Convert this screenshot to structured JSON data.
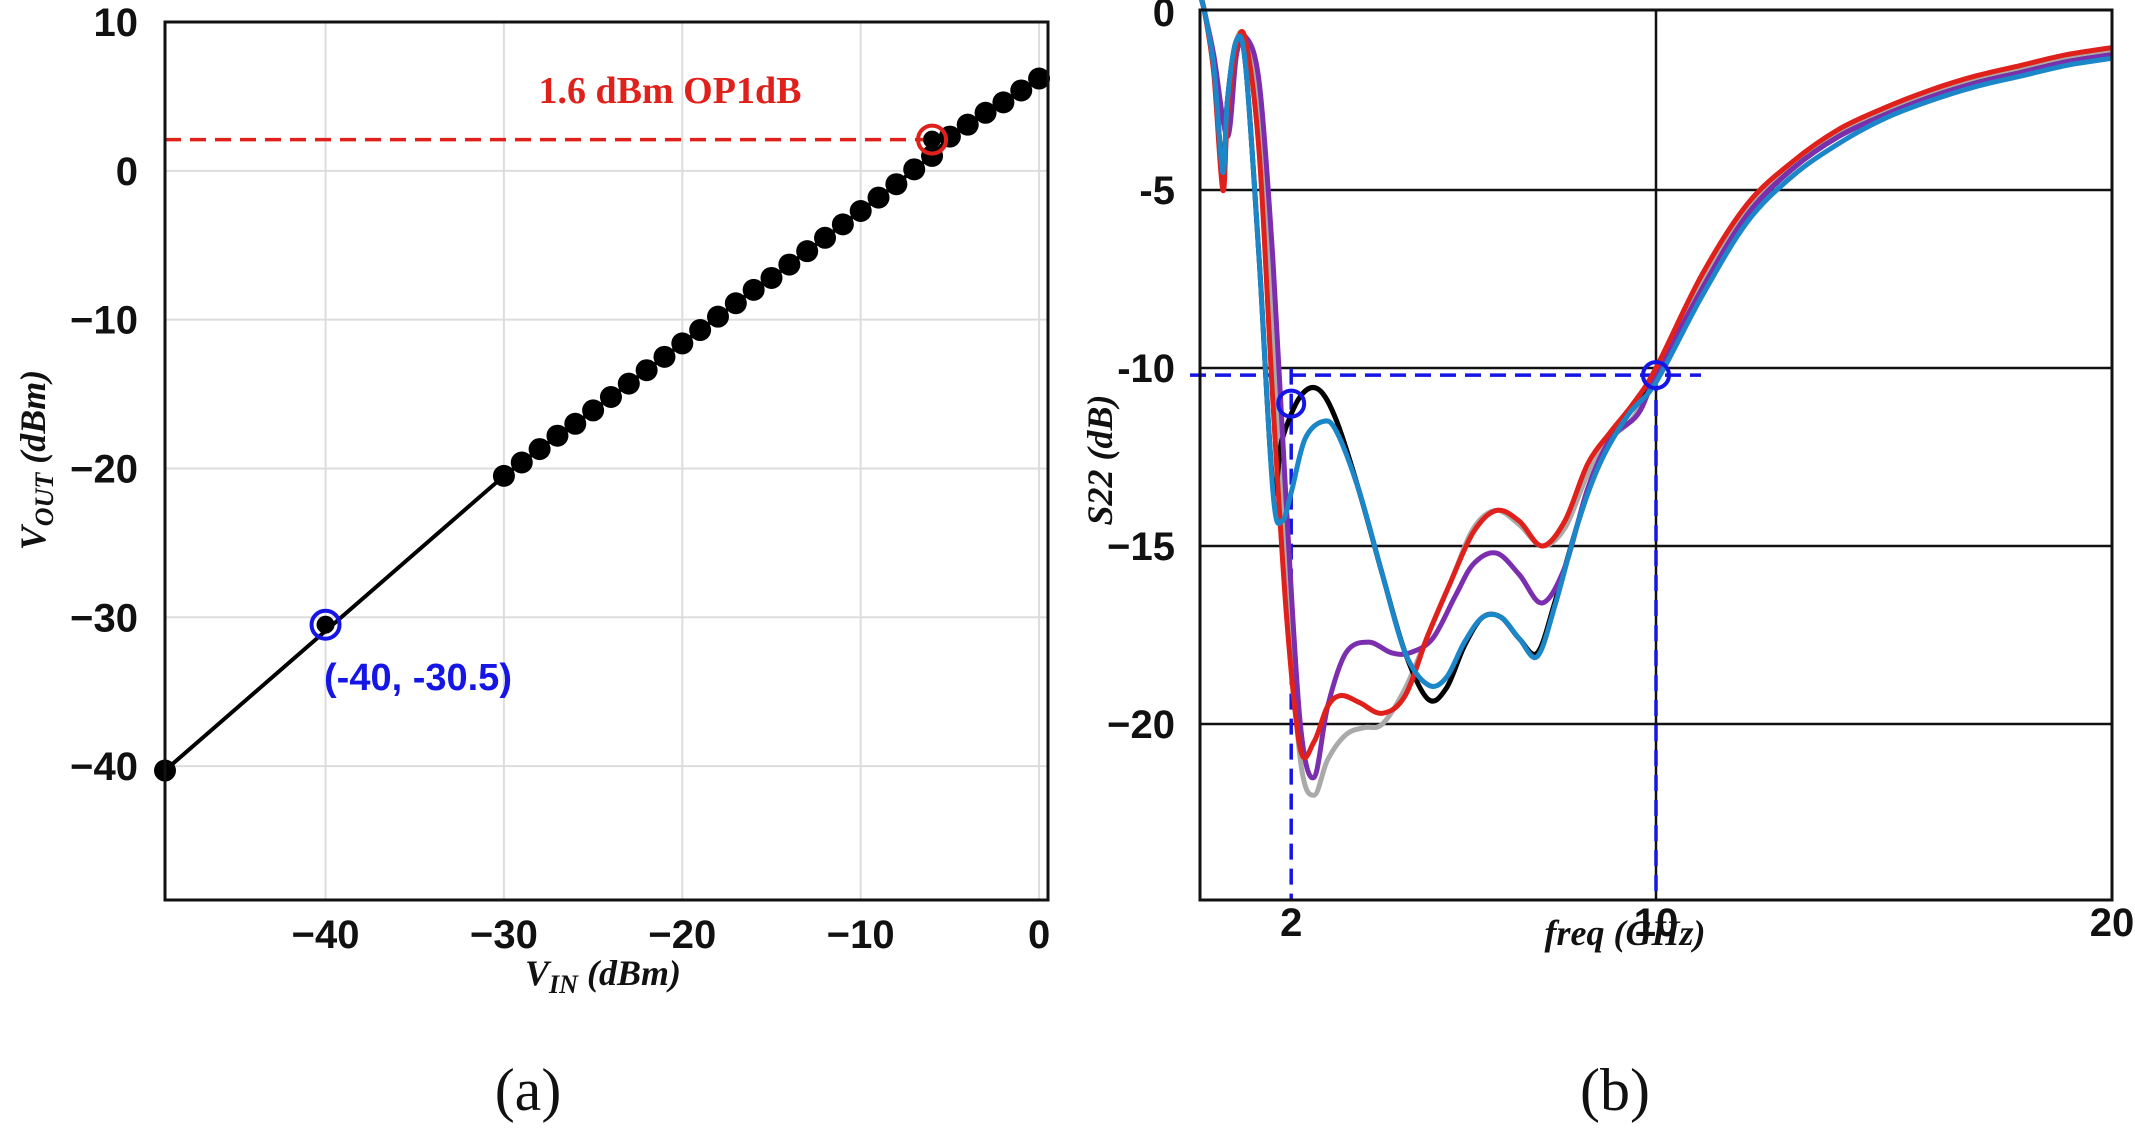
{
  "chart_data": [
    {
      "panel": "(a)",
      "type": "line",
      "xlabel": {
        "main": "V",
        "sub": "IN",
        "unit": " (dBm)"
      },
      "ylabel": {
        "main": "V",
        "sub": "OUT",
        "unit": " (dBm)"
      },
      "xlim": [
        -49,
        0.5
      ],
      "ylim": [
        -49,
        10
      ],
      "xticks": [
        -40,
        -30,
        -20,
        -10,
        0
      ],
      "xtick_labels": [
        "−40",
        "−30",
        "−20",
        "−10",
        "0"
      ],
      "yticks": [
        10,
        0,
        -10,
        -20,
        -30,
        -40
      ],
      "ytick_labels": [
        "10",
        "0",
        "−10",
        "−20",
        "−30",
        "−40"
      ],
      "grid": true,
      "series": [
        {
          "name": "VOUT",
          "color": "#000000",
          "points": [
            [
              -49,
              -40.3
            ],
            [
              -30,
              -20.5
            ],
            [
              -29,
              -19.6
            ],
            [
              -28,
              -18.7
            ],
            [
              -27,
              -17.8
            ],
            [
              -26,
              -17.0
            ],
            [
              -25,
              -16.1
            ],
            [
              -24,
              -15.2
            ],
            [
              -23,
              -14.3
            ],
            [
              -22,
              -13.4
            ],
            [
              -21,
              -12.5
            ],
            [
              -20,
              -11.6
            ],
            [
              -19,
              -10.7
            ],
            [
              -18,
              -9.8
            ],
            [
              -17,
              -8.9
            ],
            [
              -16,
              -8.0
            ],
            [
              -15,
              -7.2
            ],
            [
              -14,
              -6.3
            ],
            [
              -13,
              -5.4
            ],
            [
              -12,
              -4.5
            ],
            [
              -11,
              -3.6
            ],
            [
              -10,
              -2.7
            ],
            [
              -9,
              -1.8
            ],
            [
              -8,
              -0.9
            ],
            [
              -7,
              0.1
            ],
            [
              -6,
              1.0
            ],
            [
              -5,
              2.3
            ],
            [
              -4,
              3.1
            ],
            [
              -3,
              3.9
            ],
            [
              -2,
              4.6
            ],
            [
              -1,
              5.4
            ],
            [
              0,
              6.2
            ]
          ]
        }
      ],
      "annotations": [
        {
          "text": "1.6 dBm OP1dB",
          "color": "#e0201b",
          "point": [
            -6,
            2.1
          ]
        },
        {
          "text": "(-40, -30.5)",
          "color": "#1515e6",
          "point": [
            -40,
            -30.5
          ]
        }
      ],
      "reference_line_y": 2.1
    },
    {
      "panel": "(b)",
      "type": "line",
      "xlabel": "freq (GHz)",
      "ylabel": "S22 (dB)",
      "xlim": [
        0,
        20
      ],
      "ylim": [
        -25,
        0.5
      ],
      "xticks": [
        2,
        10,
        20
      ],
      "xtick_labels": [
        "2",
        "10",
        "20"
      ],
      "yticks": [
        0,
        -5,
        -10,
        -15,
        -20
      ],
      "ytick_labels": [
        "0",
        "-5",
        "-10",
        "−15",
        "−20"
      ],
      "grid": true,
      "series": [
        {
          "name": "gray",
          "color": "#aaaaaa",
          "points": [
            [
              0,
              0.5
            ],
            [
              0.1,
              0
            ],
            [
              0.3,
              -1.5
            ],
            [
              0.5,
              -4.5
            ],
            [
              0.6,
              -2.5
            ],
            [
              0.8,
              -0.8
            ],
            [
              1.0,
              -0.8
            ],
            [
              1.3,
              -3
            ],
            [
              1.6,
              -9
            ],
            [
              1.9,
              -16
            ],
            [
              2.2,
              -21
            ],
            [
              2.5,
              -22
            ],
            [
              2.8,
              -21
            ],
            [
              3.2,
              -20.3
            ],
            [
              3.6,
              -20.1
            ],
            [
              4.0,
              -20
            ],
            [
              4.5,
              -19
            ],
            [
              5.0,
              -17.5
            ],
            [
              5.5,
              -16
            ],
            [
              6.0,
              -14.5
            ],
            [
              6.5,
              -14
            ],
            [
              7.0,
              -14.4
            ],
            [
              7.5,
              -15
            ],
            [
              8.0,
              -14.5
            ],
            [
              8.5,
              -13
            ],
            [
              9.0,
              -12
            ],
            [
              9.5,
              -11.4
            ],
            [
              10,
              -10.2
            ],
            [
              11,
              -7.6
            ],
            [
              12,
              -5.6
            ],
            [
              13,
              -4.3
            ],
            [
              14,
              -3.4
            ],
            [
              15,
              -2.8
            ],
            [
              16,
              -2.3
            ],
            [
              17,
              -1.9
            ],
            [
              18,
              -1.6
            ],
            [
              19,
              -1.3
            ],
            [
              20,
              -1.1
            ]
          ]
        },
        {
          "name": "black",
          "color": "#000000",
          "points": [
            [
              0,
              0.5
            ],
            [
              0.1,
              0
            ],
            [
              0.3,
              -1.5
            ],
            [
              0.5,
              -4.5
            ],
            [
              0.6,
              -2.5
            ],
            [
              0.8,
              -0.8
            ],
            [
              1.0,
              -1.5
            ],
            [
              1.3,
              -7
            ],
            [
              1.6,
              -13.3
            ],
            [
              1.8,
              -12
            ],
            [
              2.2,
              -10.8
            ],
            [
              2.6,
              -10.6
            ],
            [
              3.0,
              -11.5
            ],
            [
              3.5,
              -13.5
            ],
            [
              4.0,
              -15.8
            ],
            [
              4.5,
              -18
            ],
            [
              5.0,
              -19.3
            ],
            [
              5.4,
              -19
            ],
            [
              5.8,
              -17.8
            ],
            [
              6.2,
              -17
            ],
            [
              6.6,
              -17
            ],
            [
              7.0,
              -17.6
            ],
            [
              7.4,
              -18
            ],
            [
              7.8,
              -16.5
            ],
            [
              8.3,
              -14.3
            ],
            [
              8.8,
              -12.5
            ],
            [
              9.4,
              -11.2
            ],
            [
              10,
              -10.2
            ],
            [
              11,
              -7.8
            ],
            [
              12,
              -5.7
            ],
            [
              13,
              -4.4
            ],
            [
              14,
              -3.5
            ],
            [
              15,
              -2.9
            ],
            [
              16,
              -2.4
            ],
            [
              17,
              -2.0
            ],
            [
              18,
              -1.7
            ],
            [
              19,
              -1.4
            ],
            [
              20,
              -1.2
            ]
          ]
        },
        {
          "name": "purple",
          "color": "#7b2fae",
          "points": [
            [
              0,
              0.5
            ],
            [
              0.1,
              0
            ],
            [
              0.3,
              -1.2
            ],
            [
              0.6,
              -3.5
            ],
            [
              0.8,
              -1.2
            ],
            [
              1.0,
              -0.7
            ],
            [
              1.3,
              -2
            ],
            [
              1.6,
              -7
            ],
            [
              1.9,
              -14
            ],
            [
              2.2,
              -20
            ],
            [
              2.5,
              -21.5
            ],
            [
              2.8,
              -19.5
            ],
            [
              3.2,
              -18
            ],
            [
              3.7,
              -17.7
            ],
            [
              4.2,
              -18
            ],
            [
              4.6,
              -18
            ],
            [
              5.1,
              -17.6
            ],
            [
              5.6,
              -16.4
            ],
            [
              6.0,
              -15.5
            ],
            [
              6.5,
              -15.2
            ],
            [
              7.0,
              -15.8
            ],
            [
              7.5,
              -16.6
            ],
            [
              8.0,
              -15.6
            ],
            [
              8.5,
              -13.4
            ],
            [
              9.0,
              -12
            ],
            [
              9.6,
              -11.3
            ],
            [
              10,
              -10.2
            ],
            [
              11,
              -7.8
            ],
            [
              12,
              -5.7
            ],
            [
              13,
              -4.4
            ],
            [
              14,
              -3.5
            ],
            [
              15,
              -2.9
            ],
            [
              16,
              -2.4
            ],
            [
              17,
              -2.0
            ],
            [
              18,
              -1.7
            ],
            [
              19,
              -1.4
            ],
            [
              20,
              -1.2
            ]
          ]
        },
        {
          "name": "red",
          "color": "#e0201b",
          "points": [
            [
              0,
              0.5
            ],
            [
              0.1,
              0
            ],
            [
              0.3,
              -1.7
            ],
            [
              0.5,
              -5
            ],
            [
              0.6,
              -3
            ],
            [
              0.8,
              -1
            ],
            [
              1.0,
              -0.8
            ],
            [
              1.3,
              -4
            ],
            [
              1.6,
              -11
            ],
            [
              1.9,
              -17
            ],
            [
              2.2,
              -20.7
            ],
            [
              2.5,
              -20.5
            ],
            [
              2.8,
              -19.5
            ],
            [
              3.1,
              -19.2
            ],
            [
              3.5,
              -19.4
            ],
            [
              4.0,
              -19.7
            ],
            [
              4.5,
              -19.2
            ],
            [
              5.0,
              -17.5
            ],
            [
              5.5,
              -16
            ],
            [
              6.0,
              -14.6
            ],
            [
              6.5,
              -14
            ],
            [
              7.0,
              -14.3
            ],
            [
              7.5,
              -15
            ],
            [
              8.0,
              -14.3
            ],
            [
              8.5,
              -12.7
            ],
            [
              9.0,
              -11.8
            ],
            [
              9.5,
              -11
            ],
            [
              10,
              -10
            ],
            [
              11,
              -7.4
            ],
            [
              12,
              -5.4
            ],
            [
              13,
              -4.2
            ],
            [
              14,
              -3.3
            ],
            [
              15,
              -2.7
            ],
            [
              16,
              -2.2
            ],
            [
              17,
              -1.8
            ],
            [
              18,
              -1.5
            ],
            [
              19,
              -1.2
            ],
            [
              20,
              -1.0
            ]
          ]
        },
        {
          "name": "blue",
          "color": "#1b86c8",
          "points": [
            [
              0,
              0.5
            ],
            [
              0.1,
              0
            ],
            [
              0.3,
              -1.5
            ],
            [
              0.5,
              -4.5
            ],
            [
              0.6,
              -2.5
            ],
            [
              0.8,
              -0.8
            ],
            [
              1.0,
              -1.5
            ],
            [
              1.3,
              -7
            ],
            [
              1.6,
              -13.5
            ],
            [
              1.8,
              -14.3
            ],
            [
              2.0,
              -13.5
            ],
            [
              2.3,
              -12
            ],
            [
              2.7,
              -11.5
            ],
            [
              3.0,
              -11.8
            ],
            [
              3.5,
              -13.5
            ],
            [
              4.0,
              -15.8
            ],
            [
              4.5,
              -18
            ],
            [
              5.0,
              -18.9
            ],
            [
              5.4,
              -18.7
            ],
            [
              5.8,
              -17.7
            ],
            [
              6.2,
              -17
            ],
            [
              6.6,
              -17
            ],
            [
              7.0,
              -17.6
            ],
            [
              7.4,
              -18.1
            ],
            [
              7.8,
              -16.6
            ],
            [
              8.3,
              -14.3
            ],
            [
              8.8,
              -12.6
            ],
            [
              9.4,
              -11.3
            ],
            [
              10,
              -10.4
            ],
            [
              11,
              -8
            ],
            [
              12,
              -5.9
            ],
            [
              13,
              -4.6
            ],
            [
              14,
              -3.7
            ],
            [
              15,
              -3.0
            ],
            [
              16,
              -2.5
            ],
            [
              17,
              -2.1
            ],
            [
              18,
              -1.8
            ],
            [
              19,
              -1.5
            ],
            [
              20,
              -1.3
            ]
          ]
        }
      ],
      "markers": [
        {
          "point": [
            2,
            -11
          ],
          "color": "#1515e6"
        },
        {
          "point": [
            10,
            -10.2
          ],
          "color": "#1515e6"
        }
      ],
      "reference_line_y": -10.2
    }
  ],
  "captions": {
    "a": "(a)",
    "b": "(b)"
  }
}
